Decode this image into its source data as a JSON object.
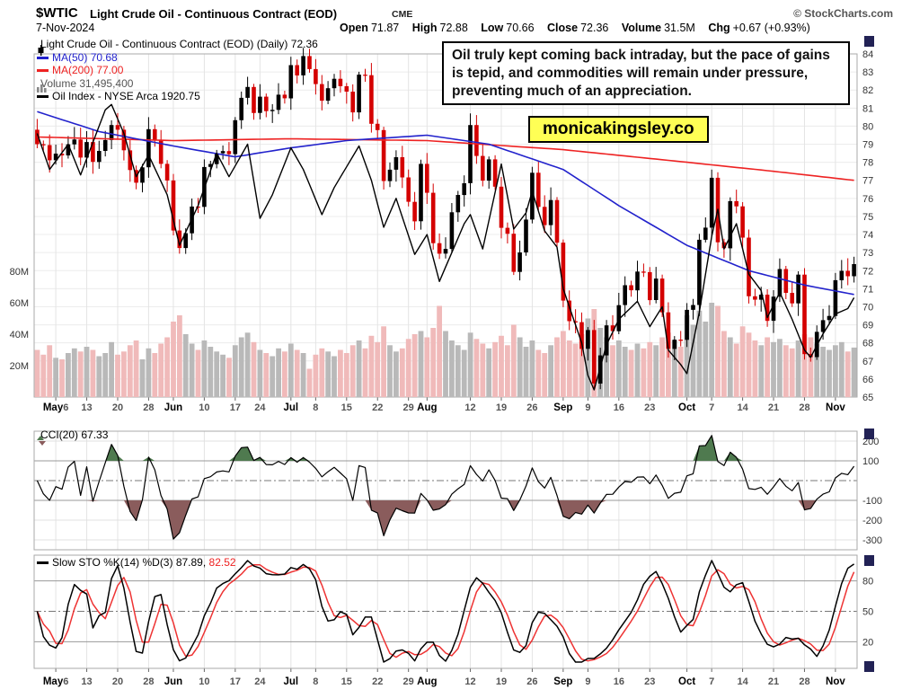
{
  "header": {
    "symbol": "$WTIC",
    "title": "Light Crude Oil - Continuous Contract (EOD)",
    "exchange": "CME",
    "source": "© StockCharts.com",
    "date": "7-Nov-2024",
    "quote": {
      "open_label": "Open",
      "open": "71.87",
      "high_label": "High",
      "high": "72.88",
      "low_label": "Low",
      "low": "70.66",
      "close_label": "Close",
      "close": "72.36",
      "volume_label": "Volume",
      "volume": "31.5M",
      "chg_label": "Chg",
      "chg": "+0.67 (+0.93%)"
    }
  },
  "annotation": {
    "text": "Oil truly kept coming back intraday, but the pace of gains is tepid, and commodities will remain under pressure, preventing much of an appreciation."
  },
  "watermark": {
    "text": "monicakingsley.co",
    "bg": "#ffff55"
  },
  "chart_data": [
    {
      "type": "candlestick",
      "name": "price-panel",
      "legend": [
        {
          "label": "Light Crude Oil - Continuous Contract (EOD) (Daily)",
          "value": "72.36",
          "color": "#000000"
        },
        {
          "label": "MA(50)",
          "value": "70.68",
          "color": "#2222cc"
        },
        {
          "label": "MA(200)",
          "value": "77.00",
          "color": "#ee2222"
        },
        {
          "label": "Volume",
          "value": "31,495,400",
          "color": "#555555"
        },
        {
          "label": "Oil Index - NYSE Arca",
          "value": "1920.75",
          "color": "#000000"
        }
      ],
      "y_axis": {
        "min": 65,
        "max": 84,
        "ticks": [
          84,
          83,
          82,
          81,
          80,
          79,
          78,
          77,
          76,
          75,
          74,
          73,
          72,
          71,
          70,
          69,
          68,
          67,
          66,
          65
        ]
      },
      "volume_axis": {
        "ticks": [
          "20M",
          "40M",
          "60M",
          "80M"
        ],
        "values": [
          20,
          40,
          60,
          80
        ]
      },
      "x_ticks": [
        {
          "i": 3,
          "m": "May",
          "d": "6"
        },
        {
          "i": 8,
          "d": "13"
        },
        {
          "i": 13,
          "d": "20"
        },
        {
          "i": 18,
          "d": "28"
        },
        {
          "i": 22,
          "m": "Jun"
        },
        {
          "i": 27,
          "d": "10"
        },
        {
          "i": 32,
          "d": "17"
        },
        {
          "i": 36,
          "d": "24"
        },
        {
          "i": 41,
          "m": "Jul"
        },
        {
          "i": 45,
          "d": "8"
        },
        {
          "i": 50,
          "d": "15"
        },
        {
          "i": 55,
          "d": "22"
        },
        {
          "i": 60,
          "d": "29"
        },
        {
          "i": 63,
          "m": "Aug"
        },
        {
          "i": 70,
          "d": "12"
        },
        {
          "i": 75,
          "d": "19"
        },
        {
          "i": 80,
          "d": "26"
        },
        {
          "i": 85,
          "m": "Sep"
        },
        {
          "i": 89,
          "d": "9"
        },
        {
          "i": 94,
          "d": "16"
        },
        {
          "i": 99,
          "d": "23"
        },
        {
          "i": 105,
          "m": "Oct"
        },
        {
          "i": 109,
          "d": "7"
        },
        {
          "i": 114,
          "d": "14"
        },
        {
          "i": 119,
          "d": "21"
        },
        {
          "i": 124,
          "d": "28"
        },
        {
          "i": 129,
          "m": "Nov"
        }
      ],
      "close": [
        79.0,
        78.95,
        78.11,
        78.48,
        78.38,
        78.99,
        79.26,
        78.26,
        79.12,
        78.02,
        78.63,
        79.23,
        80.06,
        79.8,
        78.66,
        77.57,
        76.87,
        77.72,
        79.83,
        79.23,
        77.91,
        76.99,
        74.22,
        73.25,
        74.07,
        75.55,
        75.53,
        77.74,
        77.9,
        78.5,
        78.62,
        78.45,
        80.33,
        81.57,
        82.17,
        80.73,
        81.63,
        80.83,
        80.9,
        81.74,
        81.54,
        83.38,
        82.81,
        83.88,
        83.16,
        82.33,
        81.41,
        82.1,
        82.62,
        82.21,
        81.91,
        80.76,
        82.85,
        82.82,
        80.13,
        79.78,
        76.96,
        77.59,
        78.28,
        77.16,
        75.81,
        74.73,
        77.91,
        76.31,
        73.52,
        72.94,
        73.2,
        75.23,
        76.19,
        76.84,
        80.06,
        78.35,
        76.98,
        78.16,
        76.65,
        74.37,
        74.04,
        71.93,
        73.01,
        74.83,
        77.42,
        75.53,
        74.52,
        75.91,
        73.55,
        70.34,
        69.2,
        69.15,
        67.67,
        68.71,
        65.75,
        67.31,
        68.97,
        68.65,
        70.09,
        71.19,
        70.91,
        71.95,
        71.92,
        70.37,
        71.56,
        69.69,
        67.67,
        68.18,
        68.17,
        69.83,
        70.1,
        73.71,
        74.38,
        77.14,
        73.57,
        73.24,
        75.85,
        75.56,
        73.83,
        70.58,
        70.39,
        70.67,
        69.22,
        70.56,
        72.09,
        70.77,
        70.19,
        71.78,
        67.38,
        67.21,
        68.61,
        69.26,
        69.49,
        71.47,
        71.99,
        71.69,
        72.36
      ],
      "volume": [
        30,
        27,
        33,
        25,
        24,
        28,
        31,
        29,
        32,
        30,
        26,
        28,
        35,
        27,
        29,
        33,
        36,
        24,
        31,
        28,
        34,
        38,
        48,
        52,
        40,
        34,
        30,
        36,
        32,
        29,
        27,
        25,
        33,
        38,
        41,
        35,
        30,
        28,
        26,
        31,
        29,
        34,
        30,
        28,
        18,
        27,
        31,
        29,
        26,
        30,
        28,
        33,
        36,
        31,
        39,
        35,
        45,
        33,
        29,
        31,
        37,
        40,
        42,
        38,
        44,
        58,
        42,
        36,
        33,
        30,
        41,
        37,
        34,
        31,
        35,
        39,
        33,
        46,
        38,
        32,
        36,
        30,
        28,
        33,
        38,
        42,
        36,
        34,
        40,
        50,
        56,
        44,
        38,
        33,
        36,
        32,
        30,
        34,
        31,
        35,
        33,
        38,
        41,
        36,
        32,
        52,
        46,
        55,
        48,
        60,
        58,
        42,
        38,
        34,
        45,
        41,
        36,
        33,
        38,
        35,
        37,
        33,
        31,
        36,
        40,
        38,
        34,
        32,
        30,
        33,
        35,
        29,
        31.5
      ],
      "ma50_keypoints": [
        [
          0,
          80.8
        ],
        [
          10,
          79.7
        ],
        [
          22,
          78.9
        ],
        [
          32,
          78.3
        ],
        [
          41,
          78.8
        ],
        [
          50,
          79.2
        ],
        [
          63,
          79.5
        ],
        [
          73,
          79.0
        ],
        [
          85,
          77.6
        ],
        [
          94,
          75.6
        ],
        [
          105,
          73.4
        ],
        [
          115,
          72.0
        ],
        [
          124,
          71.2
        ],
        [
          132,
          70.68
        ]
      ],
      "ma200_keypoints": [
        [
          0,
          79.4
        ],
        [
          22,
          79.2
        ],
        [
          41,
          79.3
        ],
        [
          63,
          79.2
        ],
        [
          85,
          78.7
        ],
        [
          105,
          78.0
        ],
        [
          119,
          77.5
        ],
        [
          132,
          77.0
        ]
      ],
      "oil_index_keypoints": [
        [
          0,
          79.6
        ],
        [
          2,
          77.6
        ],
        [
          5,
          79.0
        ],
        [
          7,
          77.3
        ],
        [
          11,
          80.9
        ],
        [
          12,
          81.2
        ],
        [
          14,
          79.6
        ],
        [
          16,
          77.2
        ],
        [
          18,
          78.4
        ],
        [
          21,
          76.2
        ],
        [
          23,
          73.4
        ],
        [
          26,
          75.6
        ],
        [
          29,
          78.5
        ],
        [
          31,
          77.2
        ],
        [
          34,
          79.0
        ],
        [
          36,
          74.9
        ],
        [
          38,
          76.2
        ],
        [
          41,
          78.8
        ],
        [
          43,
          77.6
        ],
        [
          46,
          75.1
        ],
        [
          48,
          76.6
        ],
        [
          52,
          78.9
        ],
        [
          54,
          77.0
        ],
        [
          56,
          74.4
        ],
        [
          58,
          76.0
        ],
        [
          61,
          72.9
        ],
        [
          63,
          74.0
        ],
        [
          65,
          71.4
        ],
        [
          69,
          74.6
        ],
        [
          70,
          75.1
        ],
        [
          72,
          73.2
        ],
        [
          75,
          77.9
        ],
        [
          77,
          74.3
        ],
        [
          79,
          75.2
        ],
        [
          80,
          76.4
        ],
        [
          82,
          74.2
        ],
        [
          84,
          73.3
        ],
        [
          85,
          71.0
        ],
        [
          88,
          68.0
        ],
        [
          89,
          66.2
        ],
        [
          90,
          65.4
        ],
        [
          92,
          67.9
        ],
        [
          94,
          69.3
        ],
        [
          97,
          70.3
        ],
        [
          99,
          68.9
        ],
        [
          101,
          70.0
        ],
        [
          102,
          67.6
        ],
        [
          104,
          66.8
        ],
        [
          105,
          66.3
        ],
        [
          107,
          69.7
        ],
        [
          109,
          73.9
        ],
        [
          110,
          75.4
        ],
        [
          111,
          73.2
        ],
        [
          113,
          74.6
        ],
        [
          115,
          71.8
        ],
        [
          117,
          70.9
        ],
        [
          118,
          69.4
        ],
        [
          120,
          70.8
        ],
        [
          122,
          69.3
        ],
        [
          124,
          67.6
        ],
        [
          125,
          67.2
        ],
        [
          127,
          68.5
        ],
        [
          129,
          69.6
        ],
        [
          131,
          69.9
        ],
        [
          132,
          70.5
        ]
      ],
      "colors": {
        "candle_up": "#000000",
        "candle_down": "#d40000",
        "volume_up": "#b9b9b9",
        "volume_down": "#f0baba",
        "ma50": "#2222cc",
        "ma200": "#ee2222",
        "oil_index": "#000000"
      }
    },
    {
      "type": "line-area",
      "name": "cci-panel",
      "legend": {
        "label": "CCI(20)",
        "value": "67.33"
      },
      "y_ticks": [
        200,
        100,
        -100,
        -200,
        -300
      ],
      "range": [
        -350,
        250
      ],
      "light_lines": [
        200,
        -200,
        -300
      ],
      "solid_lines": [
        100,
        -100
      ],
      "dashdot_lines": [
        0
      ],
      "thresholds": {
        "upper": 100,
        "lower": -100
      },
      "colors": {
        "line": "#000000",
        "fill_above": "#4f7a4f",
        "fill_below": "#8a5c5c"
      },
      "derive": "cci20_from_close"
    },
    {
      "type": "line",
      "name": "stochastic-panel",
      "legend": {
        "label": "Slow STO %K(14) %D(3)",
        "k_value": "87.89,",
        "d_value": "82.52"
      },
      "y_ticks": [
        80,
        50,
        20
      ],
      "range": [
        0,
        100
      ],
      "solid_lines": [
        80,
        20
      ],
      "dashdot_lines": [
        50
      ],
      "lines": {
        "k_color": "#000000",
        "d_color": "#ee3333"
      },
      "derive": "slow_stochastic_14_3_from_close"
    }
  ]
}
